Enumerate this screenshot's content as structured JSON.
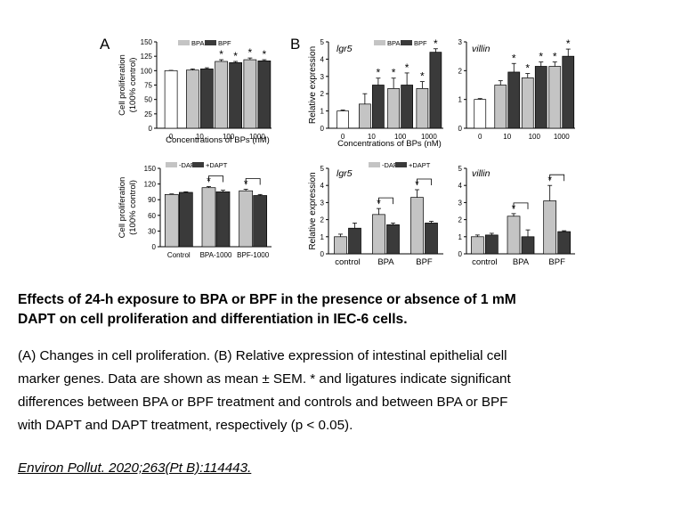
{
  "panel_letters": {
    "a": "A",
    "b": "B"
  },
  "colors": {
    "white_bar": "#ffffff",
    "light_bar": "#c4c4c4",
    "dark_bar": "#3a3a3a",
    "axis": "#000000"
  },
  "chart_data": [
    {
      "id": "A-top",
      "type": "bar",
      "ylabel": [
        "Cell proliferation",
        "(100% control)"
      ],
      "xlabel": "Concentrations of BPs (nM)",
      "ylim": [
        0,
        150
      ],
      "yticks": [
        0,
        25,
        50,
        75,
        100,
        125,
        150
      ],
      "categories": [
        "0",
        "10",
        "100",
        "1000"
      ],
      "legend": [
        "BPA",
        "BPF"
      ],
      "legend_placement": "top",
      "series": [
        {
          "name": "Control",
          "values": [
            100,
            null,
            null,
            null
          ],
          "errors": [
            0.5,
            null,
            null,
            null
          ],
          "style": "white"
        },
        {
          "name": "BPA",
          "values": [
            null,
            101,
            116,
            119
          ],
          "errors": [
            null,
            2,
            3,
            3
          ],
          "style": "light"
        },
        {
          "name": "BPF",
          "values": [
            null,
            103,
            114,
            117
          ],
          "errors": [
            null,
            2,
            2,
            2
          ],
          "style": "dark"
        }
      ],
      "stars": [
        {
          "category": 2,
          "series": 1
        },
        {
          "category": 2,
          "series": 2
        },
        {
          "category": 3,
          "series": 1
        },
        {
          "category": 3,
          "series": 2
        }
      ],
      "star_symbol": "*"
    },
    {
      "id": "B-lgr5-top",
      "type": "bar",
      "inset_label": "lgr5",
      "ylabel": "Relative expression",
      "xlabel": "Concentrations of BPs (nM)",
      "ylim": [
        0,
        5
      ],
      "yticks": [
        0,
        1,
        2,
        3,
        4,
        5
      ],
      "categories": [
        "0",
        "10",
        "100",
        "1000"
      ],
      "legend": [
        "BPA",
        "BPF"
      ],
      "legend_placement": "top",
      "series": [
        {
          "name": "Control",
          "values": [
            1.0,
            null,
            null,
            null
          ],
          "errors": [
            0.05,
            null,
            null,
            null
          ],
          "style": "white"
        },
        {
          "name": "BPA",
          "values": [
            null,
            1.4,
            2.3,
            2.3
          ],
          "errors": [
            null,
            0.6,
            0.6,
            0.4
          ],
          "style": "light"
        },
        {
          "name": "BPF",
          "values": [
            null,
            2.5,
            2.5,
            4.4
          ],
          "errors": [
            null,
            0.4,
            0.7,
            0.2
          ],
          "style": "dark"
        }
      ],
      "stars": [
        {
          "category": 1,
          "series": 2
        },
        {
          "category": 2,
          "series": 1
        },
        {
          "category": 2,
          "series": 2
        },
        {
          "category": 3,
          "series": 1
        },
        {
          "category": 3,
          "series": 2
        }
      ],
      "star_symbol": "*"
    },
    {
      "id": "B-villin-top",
      "type": "bar",
      "inset_label": "villin",
      "xlabel": "",
      "ylim": [
        0,
        3
      ],
      "yticks": [
        0,
        1,
        2,
        3
      ],
      "categories": [
        "0",
        "10",
        "100",
        "1000"
      ],
      "series": [
        {
          "name": "Control",
          "values": [
            1.0,
            null,
            null,
            null
          ],
          "errors": [
            0.03,
            null,
            null,
            null
          ],
          "style": "white"
        },
        {
          "name": "BPA",
          "values": [
            null,
            1.5,
            1.75,
            2.15
          ],
          "errors": [
            null,
            0.15,
            0.15,
            0.15
          ],
          "style": "light"
        },
        {
          "name": "BPF",
          "values": [
            null,
            1.95,
            2.15,
            2.5
          ],
          "errors": [
            null,
            0.3,
            0.15,
            0.25
          ],
          "style": "dark"
        }
      ],
      "stars": [
        {
          "category": 1,
          "series": 2
        },
        {
          "category": 2,
          "series": 1
        },
        {
          "category": 2,
          "series": 2
        },
        {
          "category": 3,
          "series": 1
        },
        {
          "category": 3,
          "series": 2
        }
      ],
      "star_symbol": "*"
    },
    {
      "id": "A-bottom",
      "type": "bar",
      "ylabel": [
        "Cell proliferation",
        "(100% control)"
      ],
      "xlabel": "",
      "ylim": [
        0,
        150
      ],
      "yticks": [
        0,
        30,
        60,
        90,
        120,
        150
      ],
      "categories": [
        "Control",
        "BPA-1000",
        "BPF-1000"
      ],
      "legend": [
        "-DAPT",
        "+DAPT"
      ],
      "legend_placement": "top",
      "series": [
        {
          "name": "-DAPT",
          "values": [
            100,
            113,
            107
          ],
          "errors": [
            1,
            2,
            3
          ],
          "style": "light"
        },
        {
          "name": "+DAPT",
          "values": [
            104,
            105,
            98
          ],
          "errors": [
            1,
            3,
            2
          ],
          "style": "dark"
        }
      ],
      "stars": [
        {
          "category": 1,
          "series": 0
        },
        {
          "category": 2,
          "series": 0
        }
      ],
      "ligatures": [
        1,
        2
      ],
      "star_symbol": "*"
    },
    {
      "id": "B-lgr5-bottom",
      "type": "bar",
      "inset_label": "lgr5",
      "ylabel": "Relative expression",
      "xlabel": "",
      "ylim": [
        0,
        5
      ],
      "yticks": [
        0,
        1,
        2,
        3,
        4,
        5
      ],
      "categories": [
        "control",
        "BPA",
        "BPF"
      ],
      "legend": [
        "-DAPT",
        "+DAPT"
      ],
      "legend_placement": "top",
      "series": [
        {
          "name": "-DAPT",
          "values": [
            1.0,
            2.3,
            3.3
          ],
          "errors": [
            0.15,
            0.35,
            0.45
          ],
          "style": "light"
        },
        {
          "name": "+DAPT",
          "values": [
            1.5,
            1.7,
            1.8
          ],
          "errors": [
            0.3,
            0.1,
            0.1
          ],
          "style": "dark"
        }
      ],
      "stars": [
        {
          "category": 1,
          "series": 0
        },
        {
          "category": 2,
          "series": 0
        }
      ],
      "ligatures": [
        1,
        2
      ],
      "star_symbol": "*"
    },
    {
      "id": "B-villin-bottom",
      "type": "bar",
      "inset_label": "villin",
      "xlabel": "",
      "ylim": [
        0,
        5
      ],
      "yticks": [
        0,
        1,
        2,
        3,
        4,
        5
      ],
      "categories": [
        "control",
        "BPA",
        "BPF"
      ],
      "series": [
        {
          "name": "-DAPT",
          "values": [
            1.0,
            2.2,
            3.1
          ],
          "errors": [
            0.1,
            0.15,
            0.9
          ],
          "style": "light"
        },
        {
          "name": "+DAPT",
          "values": [
            1.1,
            1.0,
            1.3
          ],
          "errors": [
            0.1,
            0.4,
            0.05
          ],
          "style": "dark"
        }
      ],
      "stars": [
        {
          "category": 1,
          "series": 0
        },
        {
          "category": 2,
          "series": 0
        }
      ],
      "ligatures": [
        1,
        2
      ],
      "star_symbol": "*"
    }
  ],
  "caption": {
    "title_lines": [
      "Effects of 24-h exposure to BPA or BPF in the presence or absence of 1 mM",
      "DAPT on cell proliferation and differentiation in IEC-6 cells."
    ],
    "body_lines": [
      "(A) Changes in cell proliferation. (B) Relative expression of intestinal epithelial cell",
      "marker genes. Data are shown as mean ± SEM. * and ligatures indicate significant",
      "differences between BPA or BPF treatment and controls and between BPA or BPF",
      "with DAPT and DAPT treatment, respectively (p < 0.05)."
    ],
    "citation": "Environ Pollut. 2020;263(Pt B):114443."
  }
}
